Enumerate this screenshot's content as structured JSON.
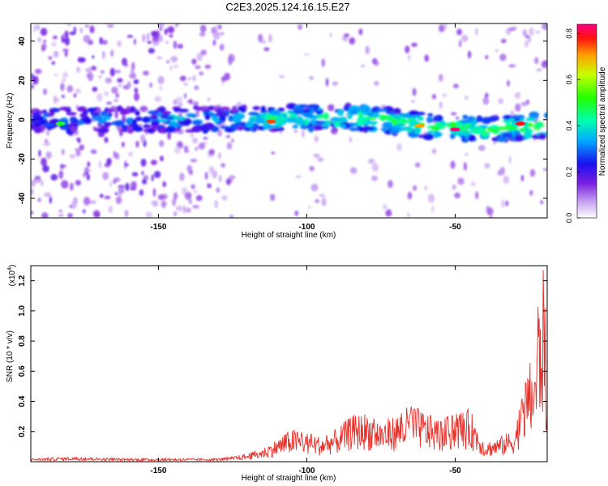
{
  "title": "C2E3.2025.124.16.15.E27",
  "colors": {
    "snr_line": "#e8302a",
    "frame": "#000000"
  },
  "chart_data": [
    {
      "type": "heatmap",
      "title": "C2E3.2025.124.16.15.E27",
      "xlabel": "Height of straight line (km)",
      "ylabel": "Frequency (Hz)",
      "xlim": [
        -193,
        -19
      ],
      "ylim": [
        -50,
        49
      ],
      "xticks": [
        -150,
        -100,
        -50
      ],
      "yticks": [
        40,
        20,
        0,
        -20,
        -40
      ],
      "colorbar": {
        "label": "Normalized spectral amplitude",
        "range": [
          0.0,
          0.84
        ],
        "ticks": [
          "0.0",
          "0.2",
          "0.4",
          "0.6",
          "0.8"
        ]
      },
      "band_center_hz": [
        {
          "x": -193,
          "y": 0
        },
        {
          "x": -150,
          "y": 0
        },
        {
          "x": -100,
          "y": 1
        },
        {
          "x": -80,
          "y": 1
        },
        {
          "x": -60,
          "y": -3
        },
        {
          "x": -40,
          "y": -5
        },
        {
          "x": -19,
          "y": -3
        }
      ],
      "peaks": [
        {
          "x": -112,
          "y": -1,
          "amplitude": 0.75
        },
        {
          "x": -62,
          "y": -3,
          "amplitude": 0.7
        },
        {
          "x": -50,
          "y": -5,
          "amplitude": 0.84
        },
        {
          "x": -28,
          "y": -2,
          "amplitude": 0.78
        },
        {
          "x": -183,
          "y": -2,
          "amplitude": 0.5
        }
      ]
    },
    {
      "type": "line",
      "xlabel": "Height of straight line (km)",
      "ylabel": "SNR (10 * v/v)",
      "y_multiplier": "(x10^4)",
      "xlim": [
        -193,
        -19
      ],
      "ylim": [
        0,
        1.3
      ],
      "xticks": [
        -150,
        -100,
        -50
      ],
      "yticks": [
        0.2,
        0.4,
        0.6,
        0.8,
        1.0,
        1.2
      ],
      "series": [
        {
          "name": "",
          "x": [
            -193,
            -180,
            -160,
            -140,
            -130,
            -125,
            -120,
            -115,
            -110,
            -105,
            -100,
            -95,
            -90,
            -85,
            -80,
            -75,
            -70,
            -65,
            -60,
            -55,
            -50,
            -45,
            -40,
            -35,
            -30,
            -27,
            -25,
            -23,
            -22,
            -21,
            -20,
            -19
          ],
          "y": [
            0.02,
            0.03,
            0.02,
            0.02,
            0.02,
            0.03,
            0.05,
            0.08,
            0.14,
            0.2,
            0.18,
            0.15,
            0.2,
            0.28,
            0.3,
            0.25,
            0.28,
            0.35,
            0.3,
            0.25,
            0.3,
            0.32,
            0.12,
            0.15,
            0.2,
            0.45,
            0.6,
            0.65,
            1.05,
            0.95,
            1.28,
            0.3
          ]
        }
      ]
    }
  ]
}
